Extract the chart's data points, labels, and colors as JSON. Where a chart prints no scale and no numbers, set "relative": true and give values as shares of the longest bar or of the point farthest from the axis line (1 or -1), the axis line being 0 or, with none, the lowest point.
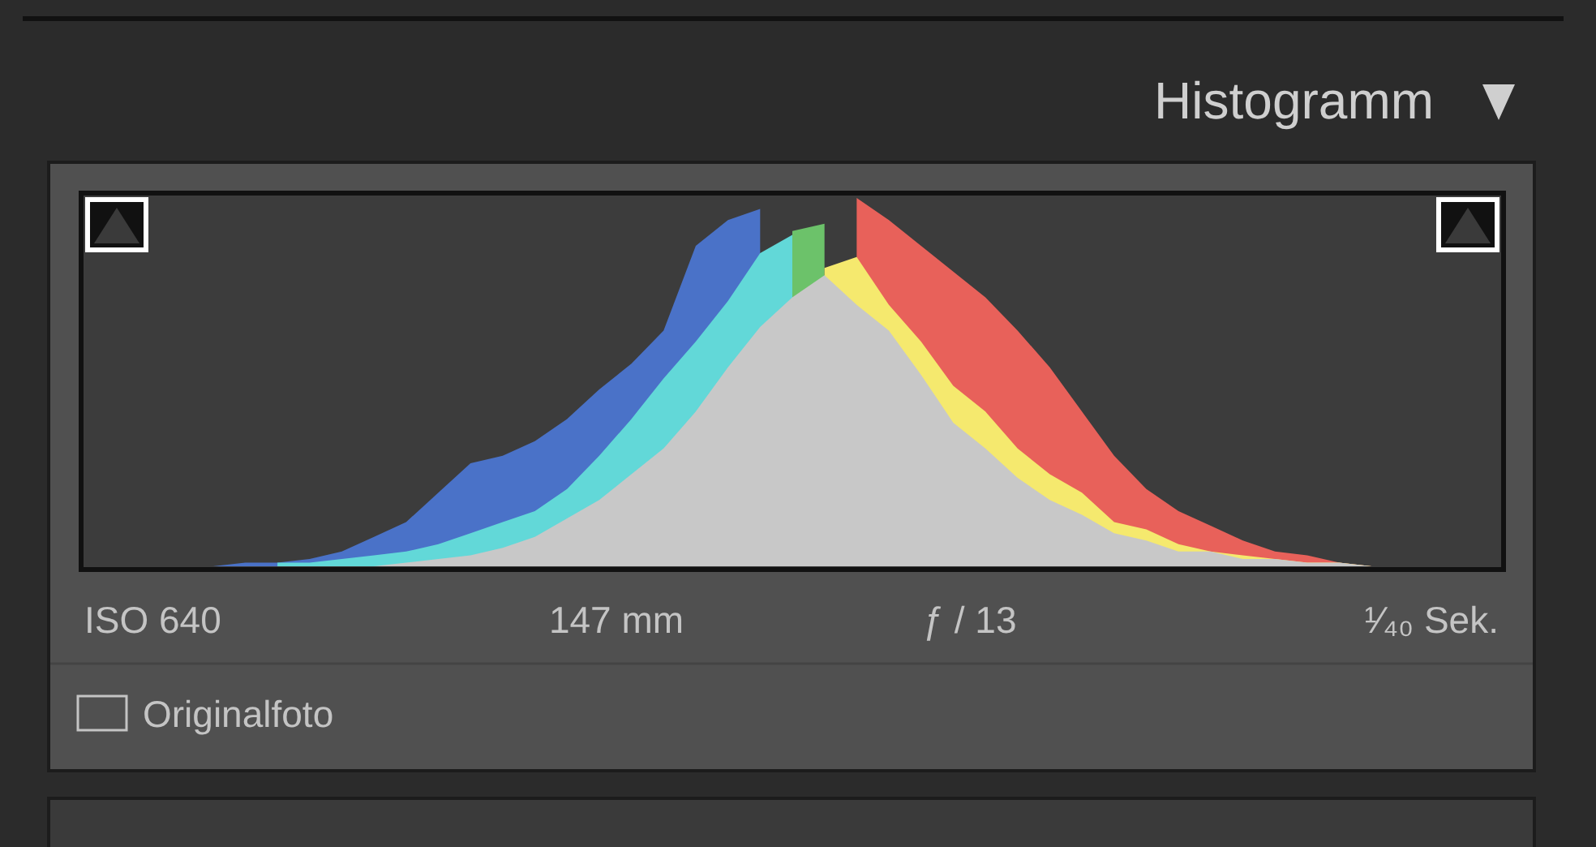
{
  "chart_data": {
    "type": "area",
    "title": "Histogramm",
    "relative": true,
    "categories": [
      null,
      null,
      null,
      null,
      null,
      null,
      null,
      null,
      null,
      null,
      null,
      null,
      null,
      null,
      null,
      null,
      null,
      null,
      null,
      null,
      null,
      null,
      null,
      null,
      null,
      null,
      null,
      null,
      null,
      null,
      null,
      null,
      null,
      null,
      null,
      null,
      null,
      null,
      null,
      null,
      null,
      null,
      null,
      null,
      null
    ],
    "series": [
      {
        "color": "#4a72c8",
        "values": [
          0,
          0,
          0,
          0,
          0,
          0.01,
          0.01,
          0.02,
          0.04,
          0.08,
          0.12,
          0.2,
          0.28,
          0.3,
          0.34,
          0.4,
          0.48,
          0.55,
          0.64,
          0.87,
          0.94,
          0.97,
          null,
          null,
          null,
          null,
          null,
          null,
          null,
          null,
          null,
          null,
          null,
          null,
          null,
          null,
          null,
          null,
          null,
          null,
          null,
          null,
          null,
          null,
          null
        ]
      },
      {
        "color": "#62d8d8",
        "values": [
          null,
          null,
          null,
          null,
          null,
          null,
          0.01,
          0.01,
          0.02,
          0.03,
          0.04,
          0.06,
          0.09,
          0.12,
          0.15,
          0.21,
          0.3,
          0.4,
          0.51,
          0.61,
          0.72,
          0.85,
          0.9,
          null,
          null,
          null,
          null,
          null,
          null,
          null,
          null,
          null,
          null,
          null,
          null,
          null,
          null,
          null,
          null,
          null,
          null,
          null,
          null,
          null,
          null
        ]
      },
      {
        "color": "#6cc26a",
        "values": [
          null,
          null,
          null,
          null,
          null,
          null,
          null,
          null,
          null,
          null,
          null,
          null,
          null,
          null,
          null,
          null,
          null,
          null,
          null,
          null,
          null,
          null,
          0.91,
          0.93,
          null,
          null,
          null,
          null,
          null,
          null,
          null,
          null,
          null,
          null,
          null,
          null,
          null,
          null,
          null,
          null,
          null,
          null,
          null,
          null,
          null
        ]
      },
      {
        "color": "#e8615a",
        "values": [
          null,
          null,
          null,
          null,
          null,
          null,
          null,
          null,
          null,
          null,
          null,
          null,
          null,
          null,
          null,
          null,
          null,
          null,
          null,
          null,
          null,
          null,
          null,
          null,
          1,
          0.94,
          0.87,
          0.8,
          0.73,
          0.64,
          0.54,
          0.42,
          0.3,
          0.21,
          0.15,
          0.11,
          0.07,
          0.04,
          0.03,
          0.01,
          0,
          0,
          0,
          0,
          0
        ]
      },
      {
        "color": "#f5e96e",
        "values": [
          null,
          null,
          null,
          null,
          null,
          null,
          null,
          null,
          null,
          null,
          null,
          null,
          null,
          null,
          null,
          null,
          null,
          null,
          null,
          null,
          null,
          null,
          null,
          0.81,
          0.84,
          0.71,
          0.61,
          0.49,
          0.42,
          0.32,
          0.25,
          0.2,
          0.12,
          0.1,
          0.06,
          0.04,
          0.03,
          0.02,
          0.01,
          0.01,
          0,
          null,
          null,
          null,
          null
        ]
      },
      {
        "color": "#c8c8c8",
        "values": [
          0,
          0,
          0,
          0,
          0,
          0,
          0,
          0,
          0,
          0,
          0.01,
          0.02,
          0.03,
          0.05,
          0.08,
          0.13,
          0.18,
          0.25,
          0.32,
          0.42,
          0.54,
          0.65,
          0.73,
          0.79,
          0.71,
          0.64,
          0.52,
          0.39,
          0.32,
          0.24,
          0.18,
          0.14,
          0.09,
          0.07,
          0.04,
          0.04,
          0.02,
          0.02,
          0.01,
          0.01,
          0,
          0,
          0,
          0,
          0
        ]
      }
    ],
    "annotations": [
      "ISO 640",
      "147 mm",
      "ƒ / 13",
      "¹⁄₄₀ Sek.",
      "Originalfoto"
    ]
  }
}
